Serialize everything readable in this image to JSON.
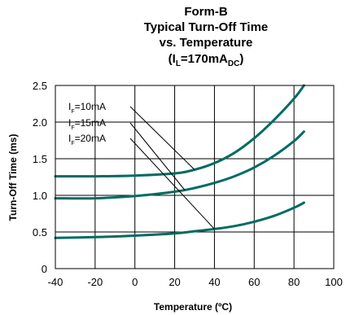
{
  "chart_data": {
    "type": "line",
    "title_lines": [
      "Form-B",
      "Typical Turn-Off Time",
      "vs. Temperature"
    ],
    "title_param": {
      "open": "(I",
      "sub1": "L",
      "mid": "=170mA",
      "sub2": "DC",
      "close": ")"
    },
    "xlabel": "Temperature (ºC)",
    "ylabel": "Turn-Off Time (ms)",
    "xlim": [
      -40,
      100
    ],
    "ylim": [
      0,
      2.5
    ],
    "x_ticks": [
      "-40",
      "-20",
      "0",
      "20",
      "40",
      "60",
      "80",
      "100"
    ],
    "y_ticks": [
      "0",
      "0.5",
      "1.0",
      "1.5",
      "2.0",
      "2.5"
    ],
    "grid": true,
    "line_color": "#006b63",
    "series": [
      {
        "name": "IF=10mA",
        "label_main": "I",
        "label_sub": "F",
        "label_rest": "=10mA",
        "x": [
          -40,
          -20,
          0,
          20,
          30,
          40,
          50,
          60,
          70,
          80,
          85
        ],
        "y": [
          1.26,
          1.26,
          1.27,
          1.3,
          1.35,
          1.44,
          1.58,
          1.78,
          2.03,
          2.32,
          2.5
        ]
      },
      {
        "name": "IF=15mA",
        "label_main": "I",
        "label_sub": "F",
        "label_rest": "=15mA",
        "x": [
          -40,
          -20,
          0,
          20,
          30,
          40,
          50,
          60,
          70,
          80,
          85
        ],
        "y": [
          0.96,
          0.96,
          0.99,
          1.05,
          1.1,
          1.17,
          1.26,
          1.38,
          1.54,
          1.74,
          1.87
        ]
      },
      {
        "name": "IF=20mA",
        "label_main": "I",
        "label_sub": "F",
        "label_rest": "=20mA",
        "x": [
          -40,
          -20,
          0,
          20,
          30,
          40,
          50,
          60,
          70,
          80,
          85
        ],
        "y": [
          0.42,
          0.43,
          0.45,
          0.48,
          0.51,
          0.54,
          0.58,
          0.64,
          0.72,
          0.83,
          0.9
        ]
      }
    ]
  }
}
